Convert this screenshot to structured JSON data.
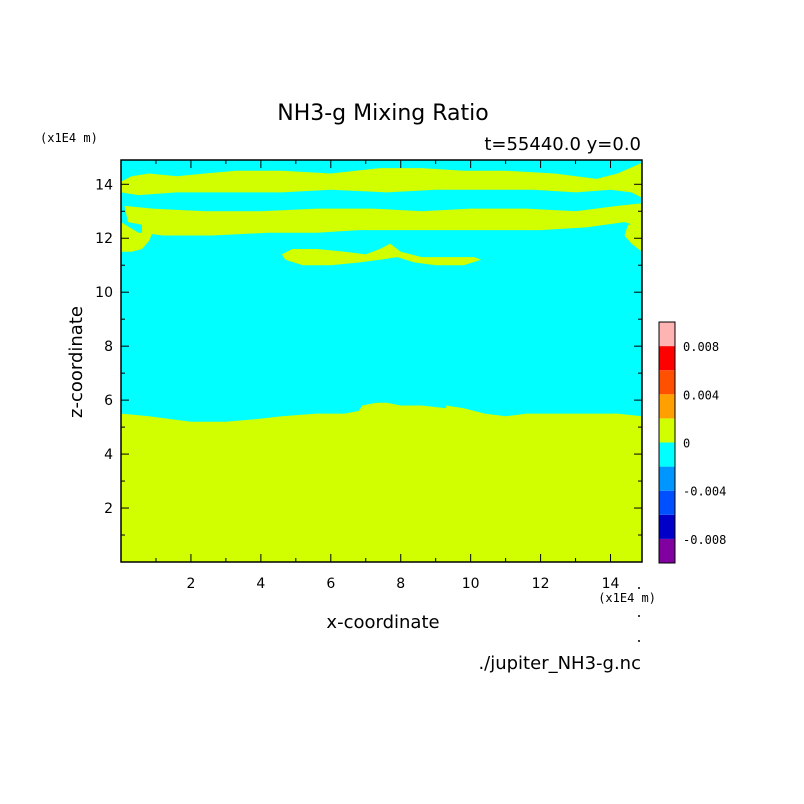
{
  "chart_data": {
    "type": "heatmap",
    "title": "NH3-g Mixing Ratio",
    "subtitle": "t=55440.0 y=0.0",
    "xlabel": "x-coordinate",
    "ylabel": "z-coordinate",
    "x_unit": "(x1E4 m)",
    "z_unit": "(x1E4 m)",
    "source_file": "./jupiter_NH3-g.nc",
    "xlim": [
      0.0,
      14.9
    ],
    "zlim": [
      0.0,
      14.9
    ],
    "x_ticks": [
      "2",
      "4",
      "6",
      "8",
      "10",
      "12",
      "14"
    ],
    "z_ticks": [
      "2",
      "4",
      "6",
      "8",
      "10",
      "12",
      "14"
    ],
    "grid": false,
    "colorbar": {
      "placement": "right",
      "levels": [
        -0.01,
        -0.008,
        -0.006,
        -0.004,
        -0.002,
        0.0,
        0.002,
        0.004,
        0.006,
        0.008,
        0.01
      ],
      "colors": [
        "#8000a0",
        "#0000c8",
        "#0050ff",
        "#0096ff",
        "#00ffff",
        "#d2ff00",
        "#ffa000",
        "#ff5000",
        "#ff0000",
        "#ffb4b4"
      ],
      "tick_labels": [
        "-0.008",
        "-0.004",
        "0",
        "0.004",
        "0.008"
      ],
      "tick_values": [
        -0.008,
        -0.004,
        0.0,
        0.004,
        0.008
      ]
    },
    "regions": [
      {
        "band": "0 to 0.002",
        "color": "#d2ff00",
        "description_points": [
          [
            0.0,
            0.0
          ],
          [
            14.9,
            0.0
          ],
          [
            14.9,
            5.4
          ],
          [
            0.0,
            5.5
          ]
        ]
      },
      {
        "band": "-0.002 to 0",
        "color": "#00ffff"
      }
    ]
  }
}
